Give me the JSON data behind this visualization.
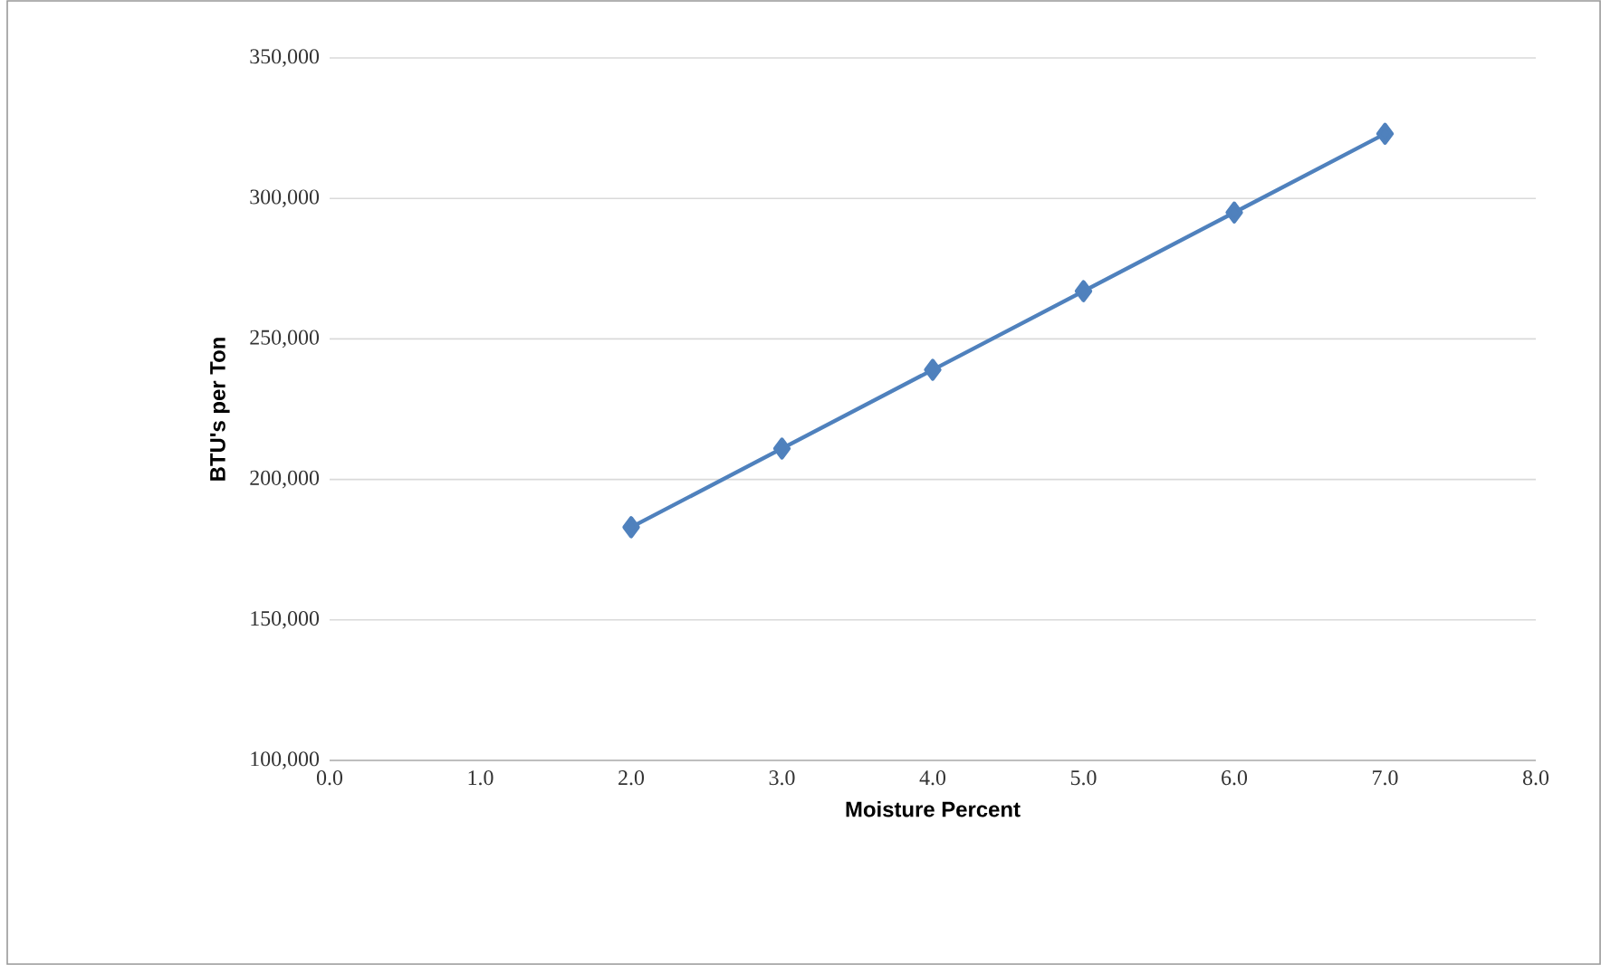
{
  "chart_data": {
    "type": "line",
    "xlabel": "Moisture Percent",
    "ylabel": "BTU's per Ton",
    "x": [
      2,
      3,
      4,
      5,
      6,
      7
    ],
    "series": [
      {
        "color": "#4f81bd",
        "values": [
          183000,
          211000,
          239000,
          267000,
          295000,
          323000
        ]
      }
    ],
    "xlim": [
      0,
      8
    ],
    "xticks": [
      {
        "value": 0,
        "label": "0.0"
      },
      {
        "value": 1,
        "label": "1.0"
      },
      {
        "value": 2,
        "label": "2.0"
      },
      {
        "value": 3,
        "label": "3.0"
      },
      {
        "value": 4,
        "label": "4.0"
      },
      {
        "value": 5,
        "label": "5.0"
      },
      {
        "value": 6,
        "label": "6.0"
      },
      {
        "value": 7,
        "label": "7.0"
      },
      {
        "value": 8,
        "label": "8.0"
      }
    ],
    "ylim": [
      100000,
      350000
    ],
    "yticks": [
      {
        "value": 100000,
        "label": "100,000"
      },
      {
        "value": 150000,
        "label": "150,000"
      },
      {
        "value": 200000,
        "label": "200,000"
      },
      {
        "value": 250000,
        "label": "250,000"
      },
      {
        "value": 300000,
        "label": "300,000"
      },
      {
        "value": 350000,
        "label": "350,000"
      }
    ],
    "grid": "y",
    "marker": "diamond",
    "line_style": "solid"
  }
}
